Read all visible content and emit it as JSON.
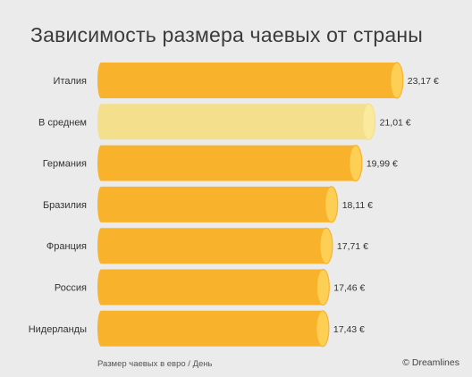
{
  "chart_data": {
    "type": "bar",
    "orientation": "horizontal",
    "title": "Зависимость размера чаевых от страны",
    "categories": [
      "Италия",
      "В среднем",
      "Германия",
      "Бразилия",
      "Франция",
      "Россия",
      "Нидерланды"
    ],
    "values": [
      23.17,
      21.01,
      19.99,
      18.11,
      17.71,
      17.46,
      17.43
    ],
    "value_labels": [
      "23,17 €",
      "21,01 €",
      "19,99 €",
      "18,11 €",
      "17,71 €",
      "17,46 €",
      "17,43 €"
    ],
    "highlighted_category": "В среднем",
    "xlabel": "Размер чаевых в евро / День",
    "ylabel": "",
    "grid": false,
    "legend": "none",
    "colors": {
      "bar": "#f9b22c",
      "bar_cap": "#fdd055",
      "highlight": "#f4e08c",
      "highlight_cap": "#faea9e",
      "background": "#ebebeb"
    }
  },
  "footer": {
    "note": "Размер чаевых в евро / День",
    "credit": "© Dreamlines"
  }
}
